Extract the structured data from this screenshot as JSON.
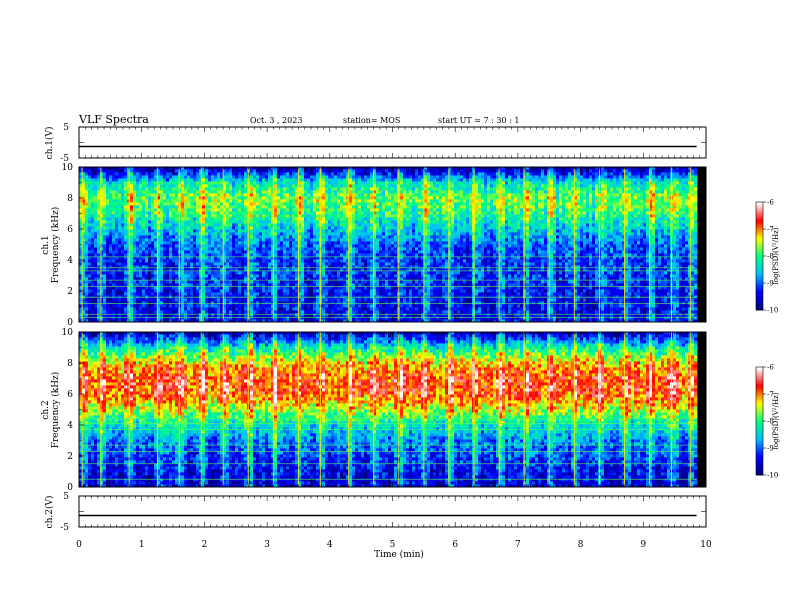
{
  "header": {
    "title": "VLF Spectra",
    "date": "Oct. 3  , 2023",
    "station": "station= MOS",
    "start_ut": "start  UT  =   7 : 30 : 1"
  },
  "axes": {
    "xlabel": "Time  (min)",
    "ch1_ylabel": "ch.1(V)",
    "ch2_ylabel": "ch.2(V)",
    "spec1_ylabel_top": "ch.1",
    "spec1_ylabel": "Frequency  (kHz)",
    "spec2_ylabel_top": "ch.2",
    "spec2_ylabel": "Frequency  (kHz)",
    "colorbar_label": "log(PSD)(V²/Hz)"
  },
  "colors": {
    "colormap": [
      "#000080",
      "#0000ff",
      "#00bfff",
      "#00ff7f",
      "#ffff00",
      "#ff0000",
      "#ffffff"
    ]
  },
  "chart_data": [
    {
      "type": "line",
      "id": "ch1-waveform",
      "ylabel": "ch.1(V)",
      "xlim": [
        0,
        10
      ],
      "ylim": [
        -5,
        5
      ],
      "yticks": [
        "5",
        "-5"
      ],
      "x": [
        0,
        9.85
      ],
      "y": [
        0,
        0
      ]
    },
    {
      "type": "heatmap",
      "id": "ch1-spectrogram",
      "ylabel": "Frequency  (kHz)",
      "xlim": [
        0,
        10
      ],
      "ylim": [
        0,
        10
      ],
      "data_xmax": 9.85,
      "yticks": [
        "0",
        "2",
        "4",
        "6",
        "8",
        "10"
      ],
      "clim": [
        -10,
        -6
      ],
      "colorbar_ticks": [
        "-6",
        "-7",
        "-8",
        "-9",
        "-10"
      ],
      "colorbar_label": "log(PSD)(V²/Hz)",
      "band_freq_khz": [
        0,
        1,
        2,
        3,
        4,
        5,
        6,
        7,
        8,
        9,
        10
      ],
      "band_log_psd": [
        -9.5,
        -9.5,
        -9.4,
        -9.3,
        -9.3,
        -9.1,
        -8.6,
        -8.1,
        -7.8,
        -8.4,
        -9.9
      ],
      "narrowband_lines_khz": [
        0.3,
        0.5,
        1.2,
        1.6,
        2.3,
        2.7,
        3.3,
        3.5,
        4.2
      ],
      "bursts_min": [
        0.05,
        0.35,
        0.8,
        1.25,
        1.6,
        1.95,
        2.3,
        2.7,
        3.1,
        3.5,
        3.85,
        4.3,
        4.7,
        5.1,
        5.5,
        5.9,
        6.3,
        6.7,
        7.1,
        7.5,
        7.9,
        8.3,
        8.7,
        9.1,
        9.45,
        9.75
      ]
    },
    {
      "type": "heatmap",
      "id": "ch2-spectrogram",
      "ylabel": "Frequency  (kHz)",
      "xlim": [
        0,
        10
      ],
      "ylim": [
        0,
        10
      ],
      "data_xmax": 9.85,
      "yticks": [
        "0",
        "2",
        "4",
        "6",
        "8",
        "10"
      ],
      "clim": [
        -10,
        -6
      ],
      "colorbar_ticks": [
        "-6",
        "-7",
        "-8",
        "-9",
        "-10"
      ],
      "colorbar_label": "log(PSD)(V²/Hz)",
      "band_freq_khz": [
        0,
        1,
        2,
        3,
        4,
        5,
        6,
        7,
        8,
        9,
        10
      ],
      "band_log_psd": [
        -9.6,
        -9.5,
        -9.2,
        -8.9,
        -8.4,
        -7.6,
        -6.9,
        -6.8,
        -7.3,
        -8.3,
        -9.8
      ],
      "narrowband_lines_khz": [
        0.5,
        1.5,
        2.3,
        2.7,
        3.7,
        4.1,
        4.4
      ],
      "bursts_min": [
        0.05,
        0.35,
        0.8,
        1.25,
        1.6,
        1.95,
        2.3,
        2.7,
        3.1,
        3.5,
        3.85,
        4.3,
        4.7,
        5.1,
        5.5,
        5.9,
        6.3,
        6.7,
        7.1,
        7.5,
        7.9,
        8.3,
        8.7,
        9.1,
        9.45,
        9.75
      ]
    },
    {
      "type": "line",
      "id": "ch2-waveform",
      "ylabel": "ch.2(V)",
      "xlim": [
        0,
        10
      ],
      "ylim": [
        -5,
        5
      ],
      "yticks": [
        "5",
        "-5"
      ],
      "x": [
        0,
        9.85
      ],
      "y": [
        0,
        0
      ],
      "xticks": [
        "0",
        "1",
        "2",
        "3",
        "4",
        "5",
        "6",
        "7",
        "8",
        "9",
        "10"
      ],
      "xlabel": "Time  (min)"
    }
  ]
}
